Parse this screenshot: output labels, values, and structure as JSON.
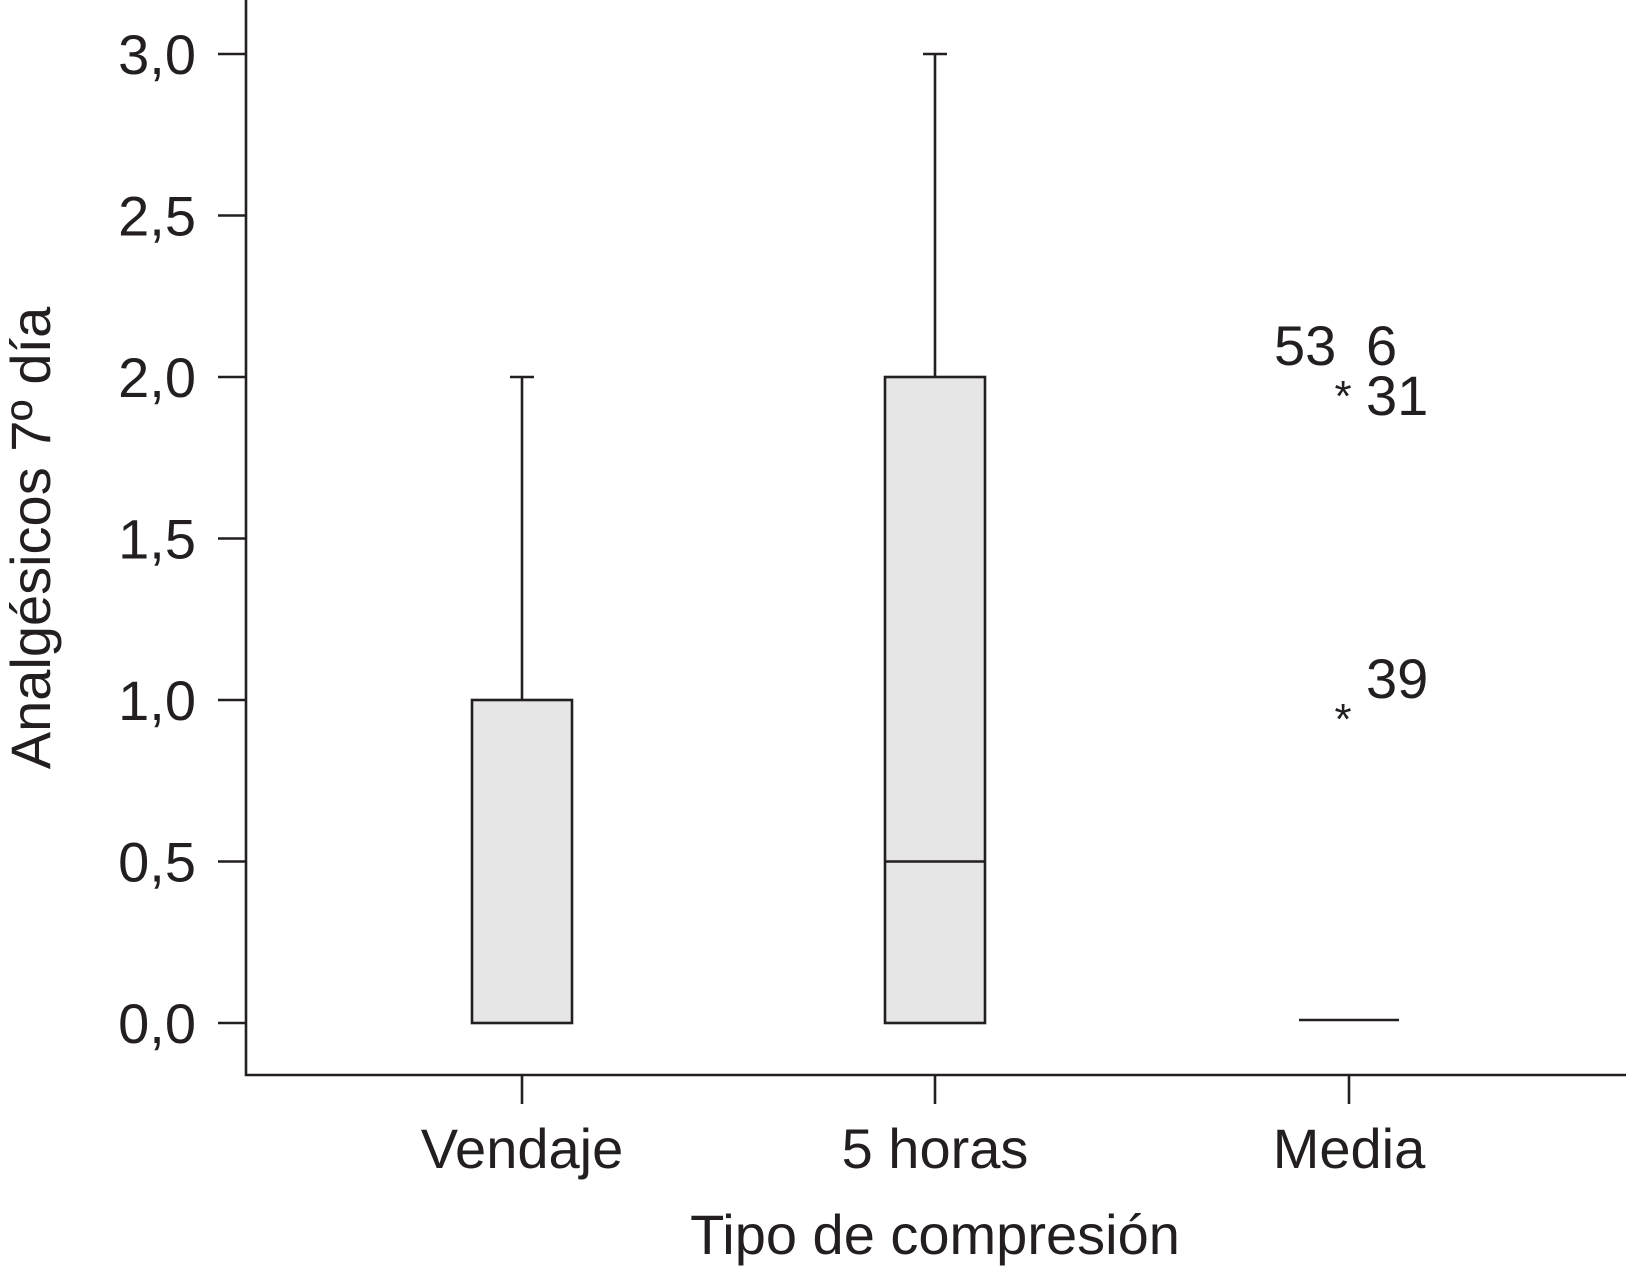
{
  "chart_data": {
    "type": "box",
    "xlabel": "Tipo de compresión",
    "ylabel": "Analgésicos 7º día",
    "ylim": [
      0,
      3
    ],
    "yticks": [
      "0,0",
      "0,5",
      "1,0",
      "1,5",
      "2,0",
      "2,5",
      "3,0"
    ],
    "ytick_values": [
      0,
      0.5,
      1.0,
      1.5,
      2.0,
      2.5,
      3.0
    ],
    "categories": [
      "Vendaje",
      "5 horas",
      "Media"
    ],
    "boxes": [
      {
        "category": "Vendaje",
        "min": 0,
        "q1": 0,
        "median": 0,
        "q3": 1.0,
        "max": 2.0
      },
      {
        "category": "5 horas",
        "min": 0,
        "q1": 0,
        "median": 0.5,
        "q3": 2.0,
        "max": 3.0
      },
      {
        "category": "Media",
        "min": 0,
        "q1": 0,
        "median": 0,
        "q3": 0,
        "max": 0
      }
    ],
    "outliers": [
      {
        "category": "Media",
        "value": 2.0,
        "marker": "*",
        "labels": [
          "53",
          "6",
          "31"
        ]
      },
      {
        "category": "Media",
        "value": 1.0,
        "marker": "*",
        "labels": [
          "39"
        ]
      }
    ],
    "grid": false
  }
}
